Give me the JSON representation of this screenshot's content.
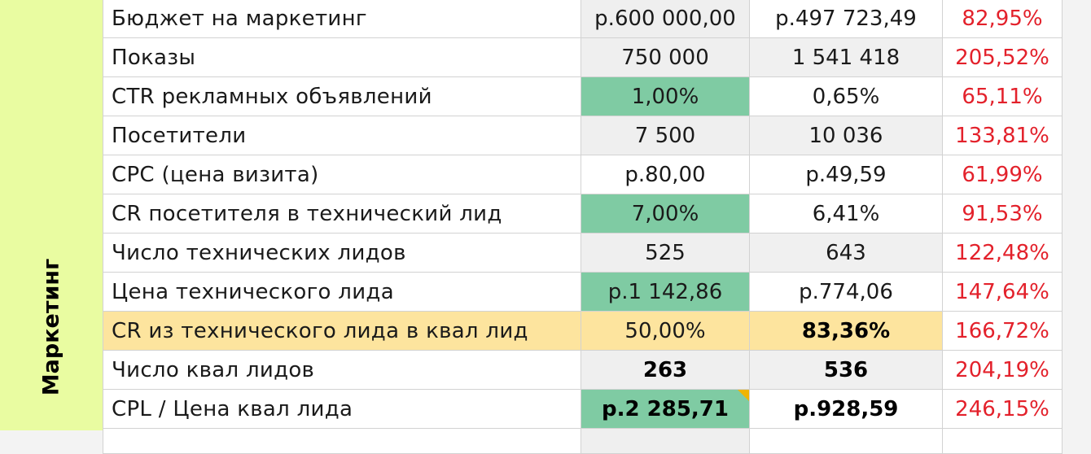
{
  "section": {
    "label": "Маркетинг"
  },
  "rows": [
    {
      "name": "Бюджет на маркетинг",
      "plan": "р.600 000,00",
      "fact": "р.497 723,49",
      "pct": "82,95%"
    },
    {
      "name": "Показы",
      "plan": "750 000",
      "fact": "1 541 418",
      "pct": "205,52%"
    },
    {
      "name": "CTR рекламных объявлений",
      "plan": "1,00%",
      "fact": "0,65%",
      "pct": "65,11%"
    },
    {
      "name": "Посетители",
      "plan": "7 500",
      "fact": "10 036",
      "pct": "133,81%"
    },
    {
      "name": "CPC (цена визита)",
      "plan": "р.80,00",
      "fact": "р.49,59",
      "pct": "61,99%"
    },
    {
      "name": "CR посетителя в технический лид",
      "plan": "7,00%",
      "fact": "6,41%",
      "pct": "91,53%"
    },
    {
      "name": "Число технических лидов",
      "plan": "525",
      "fact": "643",
      "pct": "122,48%"
    },
    {
      "name": "Цена технического лида",
      "plan": "р.1 142,86",
      "fact": "р.774,06",
      "pct": "147,64%"
    },
    {
      "name": "CR из технического лида в квал лид",
      "plan": "50,00%",
      "fact": "83,36%",
      "pct": "166,72%"
    },
    {
      "name": "Число  квал лидов",
      "plan": "263",
      "fact": "536",
      "pct": "204,19%"
    },
    {
      "name": "CPL / Цена квал лида",
      "plan": "р.2 285,71",
      "fact": "р.928,59",
      "pct": "246,15%"
    }
  ],
  "colors": {
    "highlight_green": "#7fcba3",
    "highlight_yellow": "#fde49e",
    "percent_red": "#e3212b",
    "section_bg": "#e9fca1"
  }
}
